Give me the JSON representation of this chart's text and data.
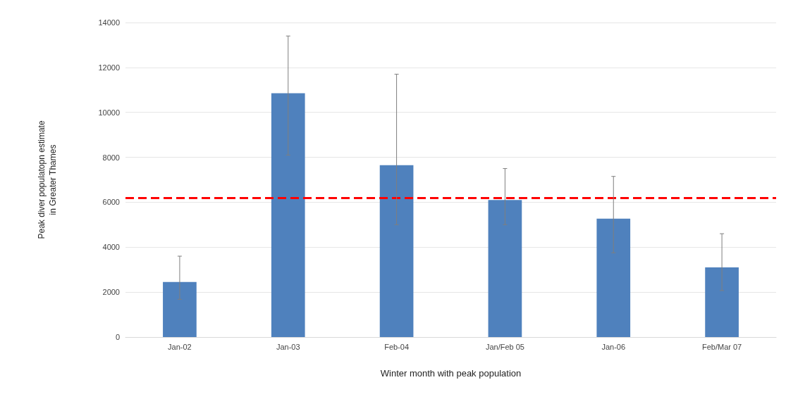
{
  "chart_data": {
    "type": "bar",
    "xlabel": "Winter month with peak population",
    "ylabel": "Peak diver populatopn estimate\nin Greater Thames",
    "categories": [
      "Jan-02",
      "Jan-03",
      "Feb-04",
      "Jan/Feb 05",
      "Jan-06",
      "Feb/Mar 07"
    ],
    "values": [
      2450,
      10850,
      7650,
      6100,
      5270,
      3100
    ],
    "errors": [
      [
        1680,
        3600
      ],
      [
        8100,
        13400
      ],
      [
        5000,
        11700
      ],
      [
        5000,
        7500
      ],
      [
        3750,
        7150
      ],
      [
        2070,
        4600
      ]
    ],
    "color": "#4f81bd",
    "ylim": [
      0,
      14000
    ],
    "yticks": [
      0,
      2000,
      4000,
      6000,
      8000,
      10000,
      12000,
      14000
    ],
    "grid": "y",
    "ref_lines": [
      {
        "axis": "y",
        "value": 6200,
        "color": "#ff0000",
        "line_style": "dashed"
      }
    ]
  }
}
